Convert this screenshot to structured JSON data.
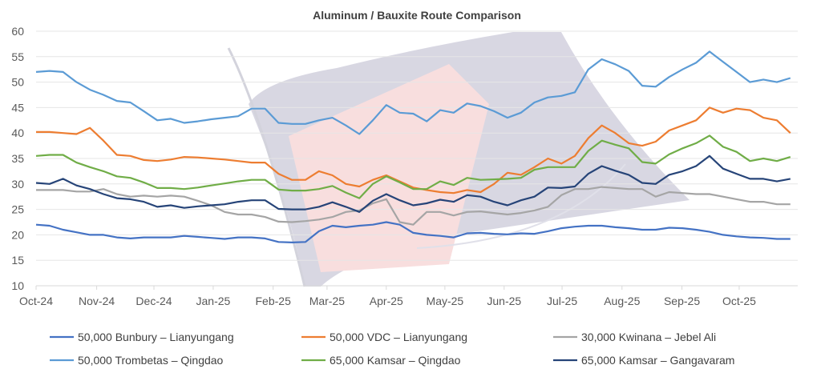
{
  "chart_data": {
    "type": "line",
    "title": "Aluminum / Bauxite Route Comparison",
    "xlabel": "",
    "ylabel": "",
    "ylim": [
      10,
      60
    ],
    "yticks": [
      10,
      15,
      20,
      25,
      30,
      35,
      40,
      45,
      50,
      55,
      60
    ],
    "x_unit": "week index (weekly points from Oct-24)",
    "xtick_labels": [
      {
        "label": "Oct-24",
        "week": 0
      },
      {
        "label": "Nov-24",
        "week": 4.5
      },
      {
        "label": "Dec-24",
        "week": 8.75
      },
      {
        "label": "Jan-25",
        "week": 13.15
      },
      {
        "label": "Feb-25",
        "week": 17.6
      },
      {
        "label": "Mar-25",
        "week": 21.6
      },
      {
        "label": "Apr-25",
        "week": 26
      },
      {
        "label": "May-25",
        "week": 30.35
      },
      {
        "label": "Jun-25",
        "week": 34.75
      },
      {
        "label": "Jul-25",
        "week": 39.05
      },
      {
        "label": "Aug-25",
        "week": 43.5
      },
      {
        "label": "Sep-25",
        "week": 47.95
      },
      {
        "label": "Oct-25",
        "week": 52.2
      }
    ],
    "grid": true,
    "legend_position": "bottom",
    "series": [
      {
        "name": "50,000 Bunbury – Lianyungang",
        "color": "#4472C4",
        "values": [
          22,
          21.8,
          21,
          20.5,
          20,
          20,
          19.5,
          19.3,
          19.5,
          19.5,
          19.5,
          19.8,
          19.6,
          19.4,
          19.2,
          19.5,
          19.5,
          19.3,
          18.6,
          18.5,
          18.6,
          20.7,
          21.8,
          21.5,
          21.8,
          22,
          22.5,
          22,
          20.4,
          20,
          19.8,
          19.5,
          20.3,
          20.4,
          20.2,
          20.1,
          20.3,
          20.2,
          20.7,
          21.3,
          21.6,
          21.8,
          21.8,
          21.5,
          21.3,
          21,
          21,
          21.4,
          21.3,
          21,
          20.6,
          20,
          19.7,
          19.5,
          19.4,
          19.2,
          19.2
        ]
      },
      {
        "name": "50,000 VDC – Lianyungang",
        "color": "#ED7D31",
        "values": [
          40.2,
          40.2,
          40,
          39.8,
          41,
          38.5,
          35.7,
          35.5,
          34.7,
          34.5,
          34.8,
          35.3,
          35.2,
          35,
          34.8,
          34.5,
          34.2,
          34.2,
          32,
          30.8,
          30.8,
          32.5,
          31.7,
          30,
          29.5,
          30.8,
          31.7,
          30.5,
          29.3,
          28.8,
          28.4,
          28.2,
          28.8,
          28.4,
          30,
          32.2,
          31.8,
          33.3,
          35,
          34,
          35.5,
          39,
          41.5,
          40,
          38,
          37.5,
          38.3,
          40.5,
          41.5,
          42.5,
          45,
          44,
          44.8,
          44.5,
          43,
          42.5,
          40
        ]
      },
      {
        "name": "30,000 Kwinana – Jebel Ali",
        "color": "#A5A5A5",
        "values": [
          28.8,
          28.8,
          28.8,
          28.5,
          28.5,
          29,
          28,
          27.5,
          27.7,
          27.5,
          27.7,
          27.5,
          26.7,
          25.8,
          24.5,
          24,
          24,
          23.5,
          22.6,
          22.5,
          22.7,
          23,
          23.5,
          24.5,
          24.8,
          26.2,
          27,
          22.5,
          22,
          24.5,
          24.5,
          23.8,
          24.5,
          24.6,
          24.3,
          24,
          24.3,
          24.8,
          25.5,
          27.8,
          29,
          29,
          29.4,
          29.2,
          29,
          29,
          27.5,
          28.4,
          28.2,
          28,
          28,
          27.5,
          27,
          26.5,
          26.5,
          26,
          26
        ]
      },
      {
        "name": "50,000 Trombetas – Qingdao",
        "color": "#5B9BD5",
        "values": [
          52,
          52.2,
          52,
          50,
          48.5,
          47.5,
          46.3,
          46,
          44.3,
          42.5,
          42.8,
          42,
          42.3,
          42.7,
          43,
          43.3,
          44.8,
          44.8,
          42,
          41.8,
          41.8,
          42.5,
          43,
          41.5,
          39.8,
          42.5,
          45.5,
          44,
          43.8,
          42.3,
          44.5,
          44,
          45.8,
          45.3,
          44.3,
          43,
          44,
          46,
          47,
          47.3,
          48,
          52.5,
          54.5,
          53.5,
          52.2,
          49.3,
          49.1,
          51,
          52.5,
          53.8,
          56,
          54,
          52,
          50,
          50.5,
          50,
          50.8
        ]
      },
      {
        "name": "65,000 Kamsar – Qingdao",
        "color": "#70AD47",
        "values": [
          35.5,
          35.7,
          35.7,
          34.2,
          33.3,
          32.5,
          31.5,
          31.2,
          30.3,
          29.2,
          29.2,
          29,
          29.3,
          29.7,
          30.1,
          30.5,
          30.8,
          30.8,
          28.9,
          28.7,
          28.7,
          29,
          29.6,
          28.3,
          27.2,
          30,
          31.5,
          30.3,
          29,
          29,
          30.5,
          29.8,
          31.2,
          30.8,
          30.9,
          31,
          31.2,
          32.8,
          33.3,
          33.3,
          33.3,
          36.5,
          38.5,
          37.7,
          37,
          34.3,
          34,
          35.8,
          37,
          38,
          39.5,
          37.3,
          36.3,
          34.5,
          35,
          34.5,
          35.3
        ]
      },
      {
        "name": "65,000 Kamsar – Gangavaram",
        "color": "#264478",
        "values": [
          30.2,
          30,
          31,
          29.7,
          29,
          28,
          27.2,
          27,
          26.5,
          25.5,
          25.8,
          25.3,
          25.6,
          25.8,
          26,
          26.5,
          26.8,
          26.8,
          25.1,
          25,
          25,
          25.5,
          26.4,
          25.5,
          24.5,
          26.7,
          28,
          26.8,
          25.8,
          26.2,
          26.9,
          26.5,
          27.8,
          27.5,
          26.5,
          25.8,
          26.8,
          27.5,
          29.3,
          29.2,
          29.5,
          32,
          33.5,
          32.6,
          31.8,
          30.2,
          30,
          31.8,
          32.5,
          33.5,
          35.5,
          33,
          32,
          31,
          31,
          30.5,
          31
        ]
      }
    ]
  }
}
